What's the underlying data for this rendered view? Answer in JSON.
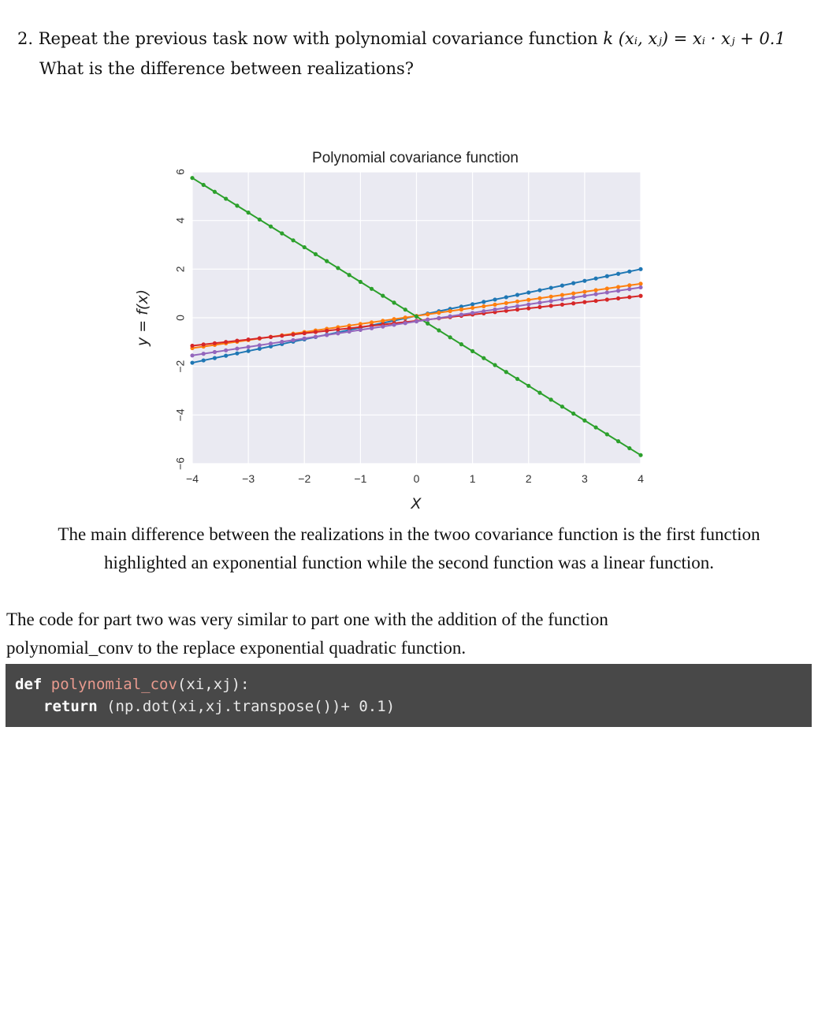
{
  "question": {
    "line1_prefix": "2. Repeat the previous task now with polynomial covariance function",
    "formula": "k (xᵢ, xⱼ) = xᵢ · xⱼ + 0.1",
    "line2": "What is the difference between realizations?"
  },
  "chart_data": {
    "type": "line",
    "title": "Polynomial covariance function",
    "xlabel": "X",
    "ylabel": "y = f(x)",
    "xlim": [
      -4,
      4
    ],
    "ylim": [
      -6,
      6
    ],
    "xticks": [
      "−4",
      "−3",
      "−2",
      "−1",
      "0",
      "1",
      "2",
      "3",
      "4"
    ],
    "yticks": [
      "−6",
      "−4",
      "−2",
      "0",
      "2",
      "4",
      "6"
    ],
    "grid": true,
    "x_range": [
      -4,
      4
    ],
    "num_points": 41,
    "series": [
      {
        "color": "#1f77b4",
        "y_start": -1.85,
        "y_end": 2.0
      },
      {
        "color": "#ff7f0e",
        "y_start": -1.25,
        "y_end": 1.4
      },
      {
        "color": "#2ca02c",
        "y_start": 5.75,
        "y_end": -5.65
      },
      {
        "color": "#d62728",
        "y_start": -1.15,
        "y_end": 0.9
      },
      {
        "color": "#9467bd",
        "y_start": -1.55,
        "y_end": 1.25
      }
    ]
  },
  "answer": {
    "line1": "The main difference between the realizations in the twoo covariance function is the first function",
    "line2": "highlighted an exponential function while the second function was a linear function."
  },
  "note": {
    "line1": "The code for part two was very similar to part one with the addition of the function",
    "line2": "polynomial_conv to the replace exponential quadratic function."
  },
  "code": {
    "kw_def": "def",
    "func_name": "polynomial_cov",
    "signature": "(xi,xj):",
    "kw_return": "return",
    "expression": " (np.dot(xi,xj.transpose())+ 0.1)"
  }
}
